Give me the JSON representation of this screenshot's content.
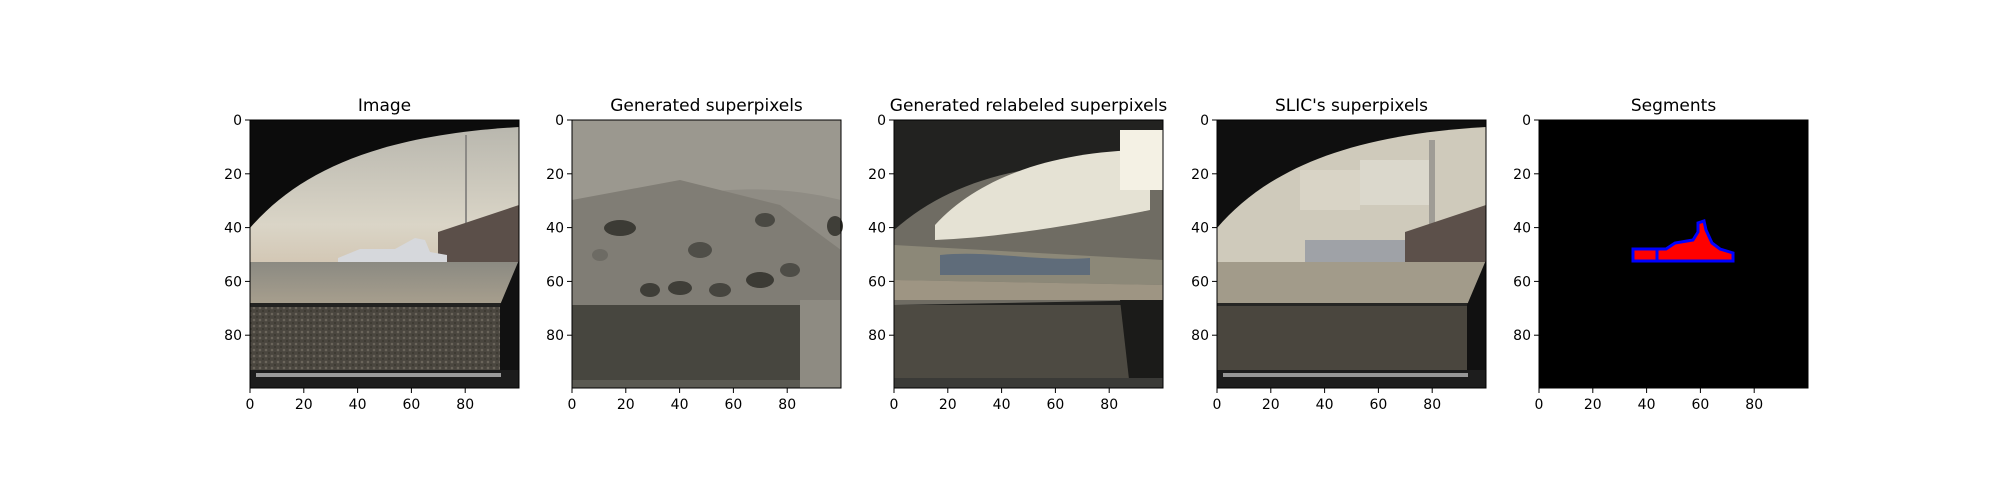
{
  "panels": [
    {
      "id": "image",
      "title": "Image"
    },
    {
      "id": "generated",
      "title": "Generated superpixels"
    },
    {
      "id": "relabeled",
      "title": "Generated relabeled superpixels"
    },
    {
      "id": "slic",
      "title": "SLIC's superpixels"
    },
    {
      "id": "segments",
      "title": "Segments"
    }
  ],
  "axes": {
    "x_ticks": [
      "0",
      "20",
      "40",
      "60",
      "80"
    ],
    "y_ticks": [
      "0",
      "20",
      "40",
      "60",
      "80"
    ],
    "range": [
      0,
      100
    ]
  },
  "colors": {
    "segment_fill": "#ff0000",
    "segment_outline": "#0000ff",
    "background": "#000000"
  }
}
